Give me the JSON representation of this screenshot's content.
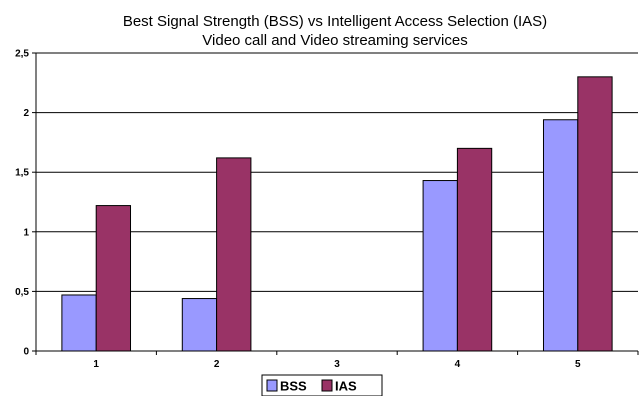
{
  "chart_data": {
    "type": "bar",
    "title": "Best Signal Strength (BSS) vs Intelligent Access Selection (IAS)",
    "subtitle": "Video call and Video streaming services",
    "xlabel": "",
    "ylabel": "",
    "categories": [
      "1",
      "2",
      "3",
      "4",
      "5"
    ],
    "series": [
      {
        "name": "BSS",
        "values": [
          0.47,
          0.44,
          0,
          1.43,
          1.94
        ],
        "color": "#9999ff"
      },
      {
        "name": "IAS",
        "values": [
          1.22,
          1.62,
          0,
          1.7,
          2.3
        ],
        "color": "#993366"
      }
    ],
    "ylim": [
      0,
      2.5
    ],
    "yticks": [
      0,
      0.5,
      1,
      1.5,
      2,
      2.5
    ],
    "ytick_labels": [
      "0",
      "0,5",
      "1",
      "1,5",
      "2",
      "2,5"
    ],
    "grid": "horizontal",
    "legend_position": "bottom"
  }
}
